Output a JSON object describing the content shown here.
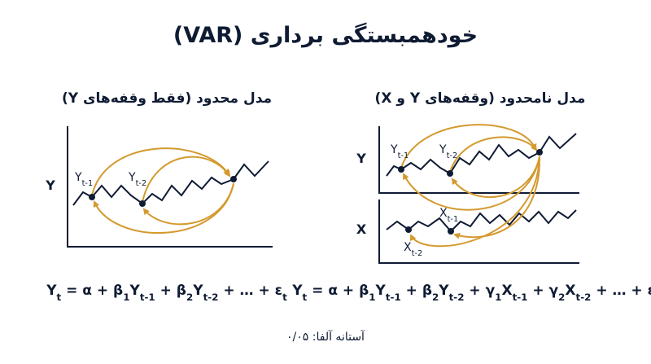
{
  "title": "خودهمبستگی برداری (VAR)",
  "panels": [
    {
      "title": "مدل محدود (فقط وقفه‌های Y)",
      "axis_labels": [
        "Y"
      ],
      "point_labels": [
        {
          "text": "Y",
          "sub": "t-1"
        },
        {
          "text": "Y",
          "sub": "t-2"
        }
      ],
      "equation": [
        {
          "text": "Y",
          "sub": "t"
        },
        {
          "text": " = α + β",
          "sub": "1"
        },
        {
          "text": "Y",
          "sub": "t-1"
        },
        {
          "text": " + β",
          "sub": "2"
        },
        {
          "text": "Y",
          "sub": "t-2"
        },
        {
          "text": " + … + ε",
          "sub": "t"
        }
      ]
    },
    {
      "title": "مدل نامحدود (وقفه‌های Y و X)",
      "axis_labels": [
        "Y",
        "X"
      ],
      "point_labels": [
        {
          "text": "Y",
          "sub": "t-1"
        },
        {
          "text": "Y",
          "sub": "t-2"
        },
        {
          "text": "X",
          "sub": "t-1"
        },
        {
          "text": "X",
          "sub": "t-2"
        }
      ],
      "equation": [
        {
          "text": "Y",
          "sub": "t"
        },
        {
          "text": " = α + β",
          "sub": "1"
        },
        {
          "text": "Y",
          "sub": "t-1"
        },
        {
          "text": " + β",
          "sub": "2"
        },
        {
          "text": "Y",
          "sub": "t-2"
        },
        {
          "text": " + γ",
          "sub": "1"
        },
        {
          "text": "X",
          "sub": "t-1"
        },
        {
          "text": " + γ",
          "sub": "2"
        },
        {
          "text": "X",
          "sub": "t-2"
        },
        {
          "text": " + … + ε",
          "sub": "t"
        }
      ]
    }
  ],
  "footer": "آستانه آلفا: ۰/۰۵"
}
